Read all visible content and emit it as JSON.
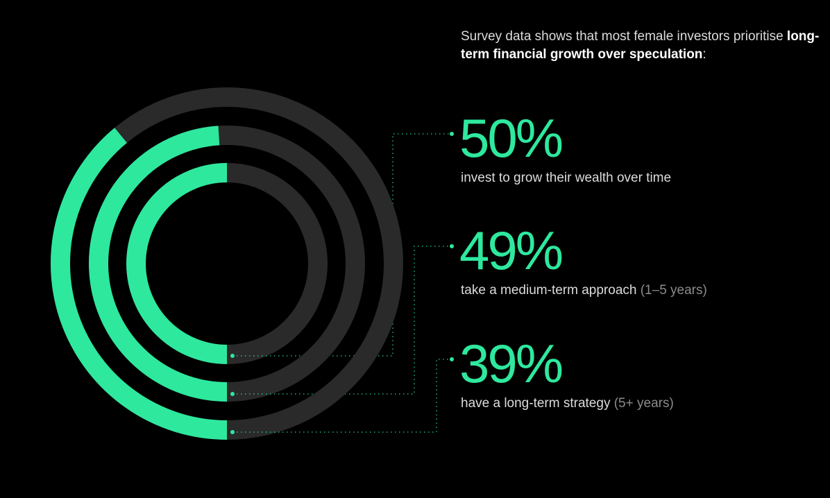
{
  "intro": {
    "text_plain": "Survey data shows that most female investors prioritise ",
    "text_bold": "long-term financial growth over speculation",
    "text_end": ":"
  },
  "colors": {
    "accent": "#2ee89e",
    "track": "#2a2a2a",
    "background": "#000000"
  },
  "chart_data": {
    "type": "radial-bar",
    "title": "",
    "series": [
      {
        "label": "50%",
        "value": 50,
        "description": "invest to grow their wealth over time",
        "note": ""
      },
      {
        "label": "49%",
        "value": 49,
        "description": "take a medium-term approach",
        "note": "(1–5 years)"
      },
      {
        "label": "39%",
        "value": 39,
        "description": "have a long-term strategy",
        "note": "(5+ years)"
      }
    ],
    "max": 100
  }
}
